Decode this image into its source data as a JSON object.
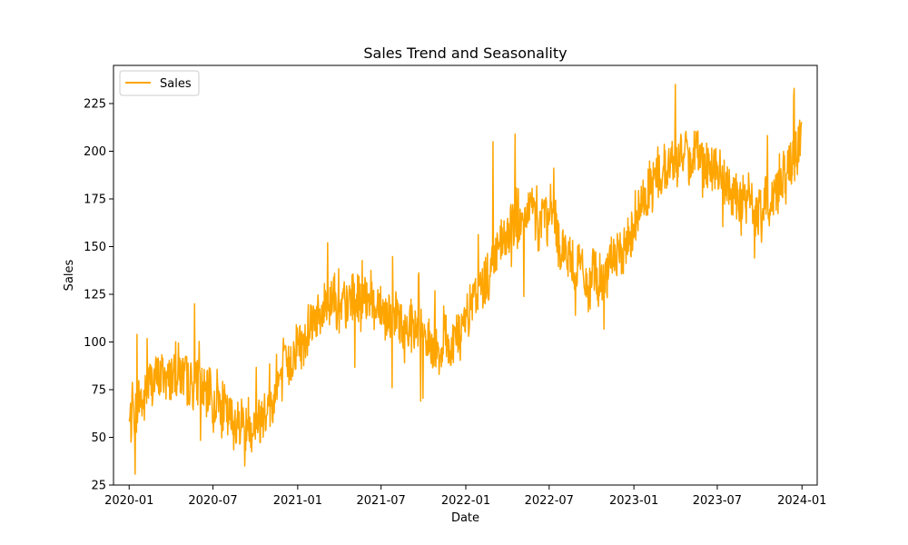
{
  "chart_data": {
    "type": "line",
    "title": "Sales Trend and Seasonality",
    "xlabel": "Date",
    "ylabel": "Sales",
    "ylim": [
      25,
      245
    ],
    "xlim": [
      "2019-11-28",
      "2024-02-03"
    ],
    "x_ticks": [
      "2020-01",
      "2020-07",
      "2021-01",
      "2021-07",
      "2022-01",
      "2022-07",
      "2023-01",
      "2023-07",
      "2024-01"
    ],
    "y_ticks": [
      25,
      50,
      75,
      100,
      125,
      150,
      175,
      200,
      225
    ],
    "grid": false,
    "legend_position": "top-left",
    "frequency": "daily",
    "series": [
      {
        "name": "Sales",
        "color": "#ffa500",
        "x_start": "2020-01-01",
        "x_end": "2023-12-31",
        "values": [
          57,
          60,
          64,
          72,
          66,
          75,
          79,
          80,
          81,
          82,
          84,
          78,
          83,
          80,
          87,
          82,
          82,
          79,
          77,
          78,
          81,
          74,
          71,
          76,
          62,
          74,
          67,
          66,
          60,
          60,
          55,
          58,
          60,
          59,
          60,
          54,
          60,
          58,
          63,
          64,
          66,
          67,
          78,
          82,
          87,
          85,
          90,
          96,
          101,
          98,
          99,
          110,
          112,
          115,
          110,
          115,
          123,
          121,
          129,
          115,
          114,
          121,
          116,
          126,
          121,
          125,
          116,
          121,
          128,
          123,
          115,
          125,
          117,
          113,
          116,
          108,
          116,
          112,
          100,
          109,
          113,
          103,
          110,
          106,
          96,
          99,
          95,
          100,
          95,
          97,
          105,
          94,
          101,
          106,
          101,
          107,
          113,
          118,
          122,
          125,
          127,
          133,
          131,
          140,
          145,
          152,
          151,
          153,
          156,
          163,
          162,
          160,
          158,
          166,
          168,
          170,
          155,
          165,
          170,
          161,
          163,
          166,
          149,
          153,
          146,
          142,
          143,
          136,
          140,
          134,
          130,
          125,
          140,
          135,
          134,
          130,
          134,
          145,
          148,
          142,
          147,
          150,
          155,
          159,
          165,
          169,
          174,
          178,
          183,
          185,
          186,
          186,
          193,
          190,
          193,
          198,
          192,
          203,
          198,
          195,
          199,
          200,
          203,
          193,
          195,
          190,
          193,
          189,
          188,
          185,
          180,
          178,
          179,
          170,
          178,
          171,
          177,
          171,
          167,
          167,
          169,
          175,
          173,
          177,
          182,
          187,
          189,
          189,
          192,
          197,
          202,
          209
        ],
        "peaks": [
          [
            "2020-01-18",
            104
          ],
          [
            "2020-05-22",
            120
          ],
          [
            "2020-09-08",
            35
          ],
          [
            "2021-03-07",
            152
          ],
          [
            "2021-07-25",
            76
          ],
          [
            "2021-09-25",
            69
          ],
          [
            "2022-03-01",
            205
          ],
          [
            "2022-04-18",
            209
          ],
          [
            "2022-08-27",
            114
          ],
          [
            "2023-04-01",
            235
          ],
          [
            "2023-09-20",
            144
          ],
          [
            "2023-12-15",
            233
          ]
        ]
      }
    ]
  }
}
